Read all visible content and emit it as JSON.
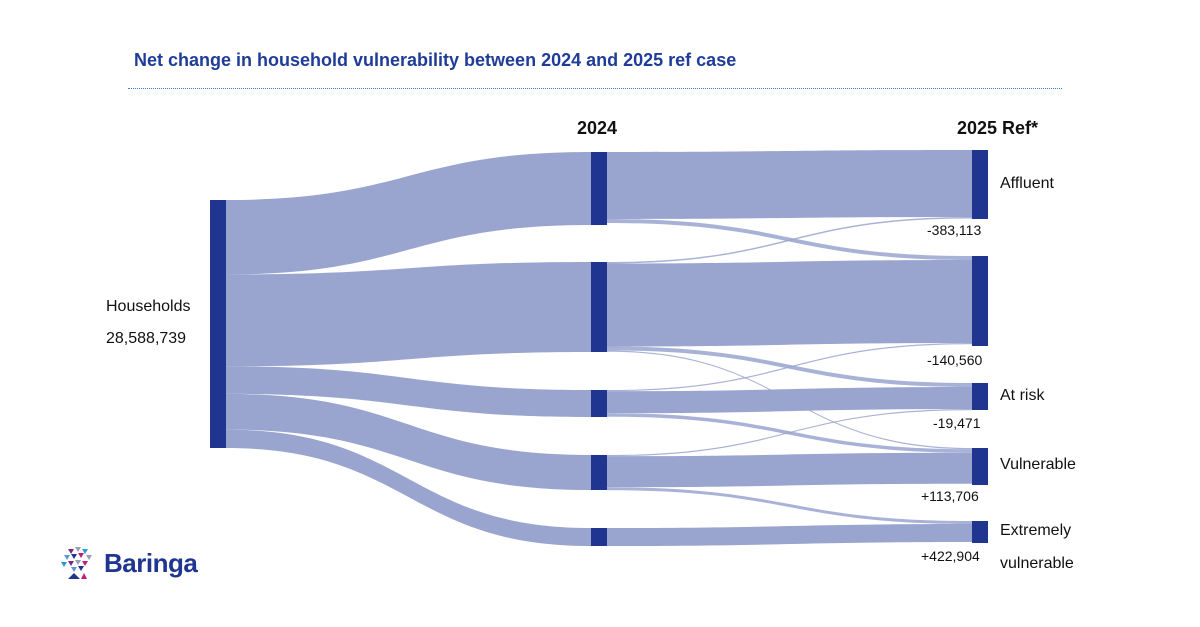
{
  "title": "Net change in household vulnerability between 2024 and 2025 ref case",
  "columns": {
    "left": "",
    "middle": "2024",
    "right": "2025 Ref*"
  },
  "source": {
    "label": "Households",
    "total": "28,588,739"
  },
  "right_nodes": [
    {
      "label": "Affluent",
      "net_change": "-383,113"
    },
    {
      "label": "",
      "net_change": "-140,560"
    },
    {
      "label": "At risk",
      "net_change": "-19,471"
    },
    {
      "label": "Vulnerable",
      "net_change": "+113,706"
    },
    {
      "label": "Extremely vulnerable",
      "label_line1": "Extremely",
      "label_line2": "vulnerable",
      "net_change": "+422,904"
    }
  ],
  "logo": {
    "text": "Baringa"
  },
  "colors": {
    "node": "#1f3590",
    "link": "#99a5cf",
    "title": "#1f3c99"
  }
}
